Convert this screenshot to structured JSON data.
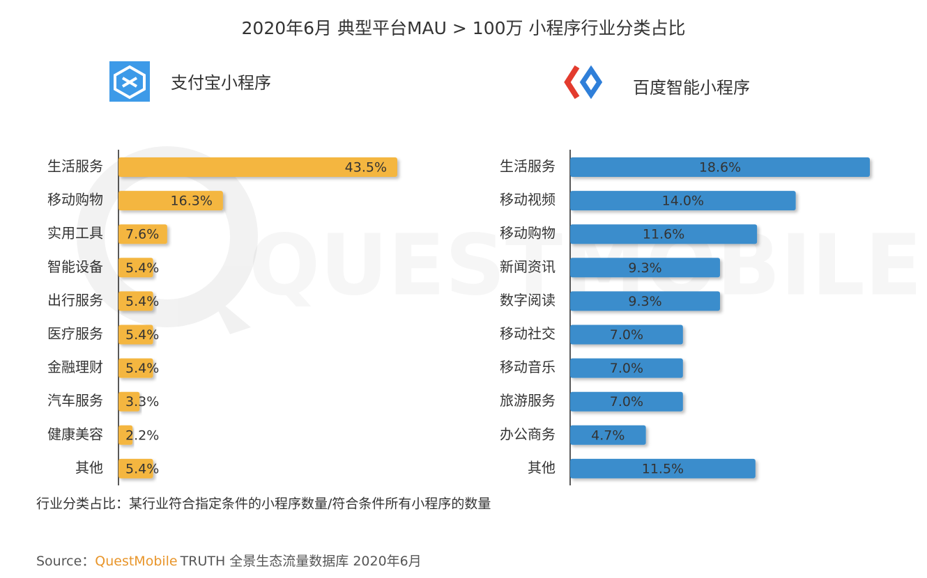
{
  "title": "2020年6月 典型平台MAU > 100万 小程序行业分类占比",
  "watermark": "QUESTMOBILE",
  "note": "行业分类占比：某行业符合指定条件的小程序数量/符合条件所有小程序的数量",
  "source": {
    "label": "Source：",
    "brand": "QuestMobile",
    "text": "TRUTH 全景生态流量数据库 2020年6月"
  },
  "chart_data": [
    {
      "type": "bar",
      "orientation": "horizontal",
      "title": "支付宝小程序",
      "color": "#f4b63f",
      "categories": [
        "生活服务",
        "移动购物",
        "实用工具",
        "智能设备",
        "出行服务",
        "医疗服务",
        "金融理财",
        "汽车服务",
        "健康美容",
        "其他"
      ],
      "values": [
        43.5,
        16.3,
        7.6,
        5.4,
        5.4,
        5.4,
        5.4,
        3.3,
        2.2,
        5.4
      ],
      "value_labels": [
        "43.5%",
        "16.3%",
        "7.6%",
        "5.4%",
        "5.4%",
        "5.4%",
        "5.4%",
        "3.3%",
        "2.2%",
        "5.4%"
      ]
    },
    {
      "type": "bar",
      "orientation": "horizontal",
      "title": "百度智能小程序",
      "color": "#3b8dcc",
      "categories": [
        "生活服务",
        "移动视频",
        "移动购物",
        "新闻资讯",
        "数字阅读",
        "移动社交",
        "移动音乐",
        "旅游服务",
        "办公商务",
        "其他"
      ],
      "values": [
        18.6,
        14.0,
        11.6,
        9.3,
        9.3,
        7.0,
        7.0,
        7.0,
        4.7,
        11.5
      ],
      "value_labels": [
        "18.6%",
        "14.0%",
        "11.6%",
        "9.3%",
        "9.3%",
        "7.0%",
        "7.0%",
        "7.0%",
        "4.7%",
        "11.5%"
      ]
    }
  ]
}
